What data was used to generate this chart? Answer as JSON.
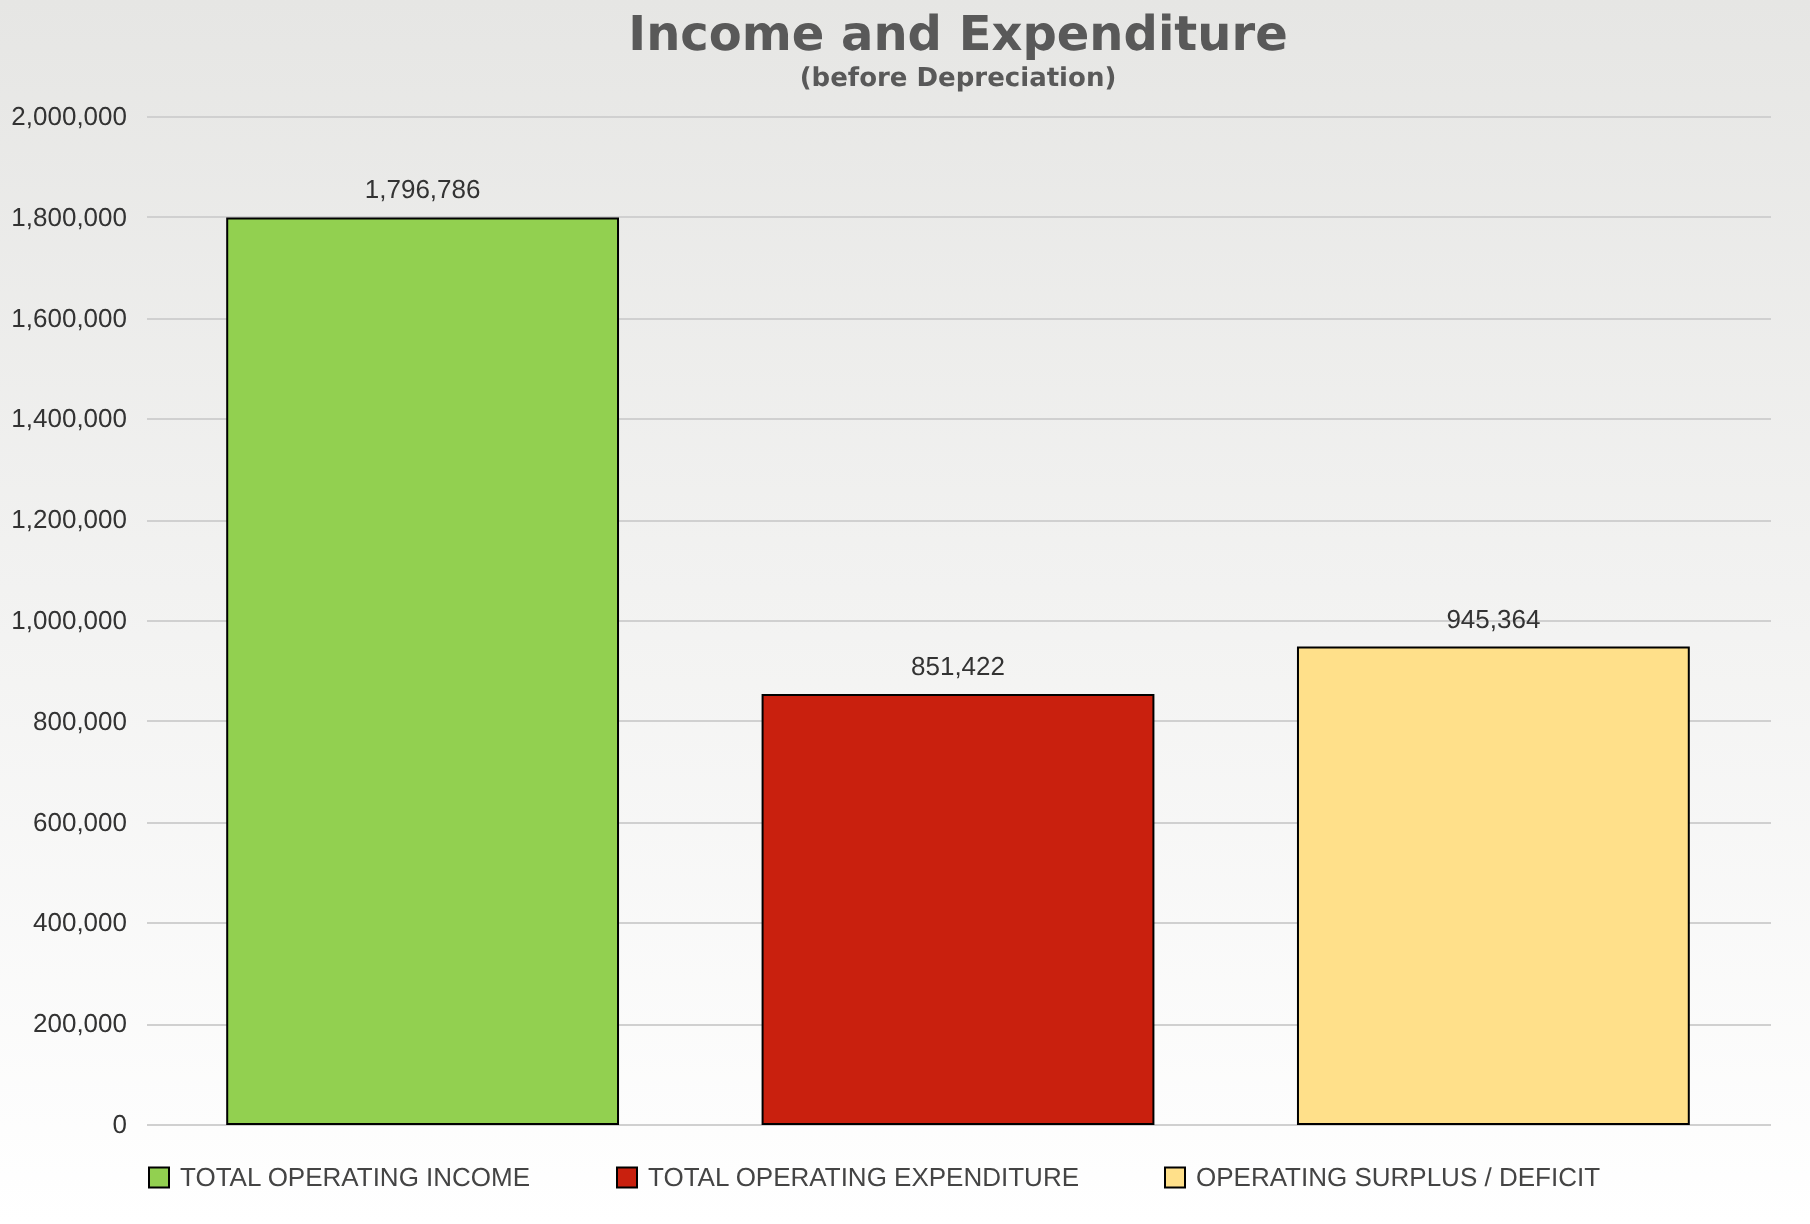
{
  "chart_data": {
    "type": "bar",
    "title": "Income and Expenditure",
    "subtitle": "(before Depreciation)",
    "categories": [
      null
    ],
    "series": [
      {
        "name": "TOTAL OPERATING INCOME",
        "color": "#92d050",
        "values": [
          1796786
        ],
        "value_labels": [
          "1,796,786"
        ]
      },
      {
        "name": "TOTAL OPERATING EXPENDITURE",
        "color": "#c9200e",
        "values": [
          851422
        ],
        "value_labels": [
          "851,422"
        ]
      },
      {
        "name": "OPERATING SURPLUS / DEFICIT",
        "color": "#ffe08a",
        "values": [
          945364
        ],
        "value_labels": [
          "945,364"
        ]
      }
    ],
    "ylim": [
      0,
      2000000
    ],
    "yticks": [
      0,
      {
        "value": 200000,
        "label": "200,000"
      },
      {
        "value": 400000,
        "label": "400,000"
      },
      {
        "value": 600000,
        "label": "600,000"
      },
      {
        "value": 800000,
        "label": "800,000"
      },
      {
        "value": 1000000,
        "label": "1,000,000"
      },
      {
        "value": 1200000,
        "label": "1,200,000"
      },
      {
        "value": 1400000,
        "label": "1,400,000"
      },
      {
        "value": 1600000,
        "label": "1,600,000"
      },
      {
        "value": 1800000,
        "label": "1,800,000"
      },
      {
        "value": 2000000,
        "label": "2,000,000"
      }
    ],
    "grid": "y",
    "legend": "bottom"
  }
}
